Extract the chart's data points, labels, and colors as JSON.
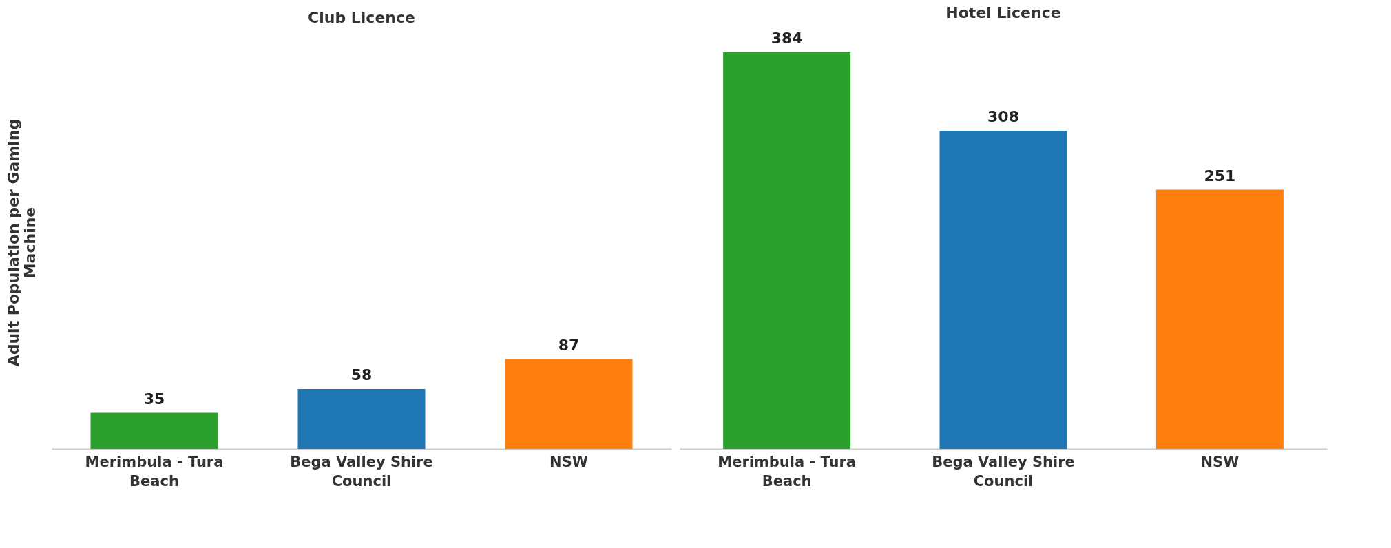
{
  "chart_data": [
    {
      "type": "bar",
      "title": "Club Licence",
      "ylabel": "Adult Population per Gaming Machine",
      "categories": [
        "Merimbula - Tura Beach",
        "Bega Valley Shire Council",
        "NSW"
      ],
      "values": [
        35,
        58,
        87
      ],
      "colors": [
        "#2ca02c",
        "#1f77b4",
        "#ff7f0e"
      ],
      "tick_labels": "x",
      "data_labels": true
    },
    {
      "type": "bar",
      "title": "Hotel Licence",
      "categories": [
        "Merimbula - Tura Beach",
        "Bega Valley Shire Council",
        "NSW"
      ],
      "values": [
        384,
        308,
        251
      ],
      "colors": [
        "#2ca02c",
        "#1f77b4",
        "#ff7f0e"
      ],
      "tick_labels": "x",
      "data_labels": true
    }
  ]
}
